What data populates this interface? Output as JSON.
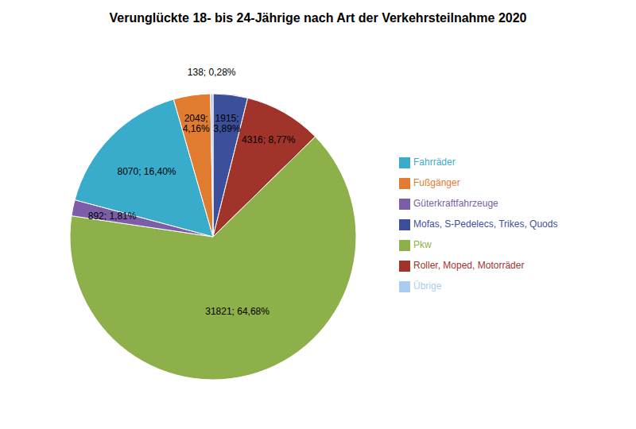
{
  "chart_data": {
    "type": "pie",
    "title": "Verunglückte 18- bis 24-Jährige nach Art der Verkehrsteilnahme 2020",
    "categories": [
      "Mofas, S-Pedelecs, Trikes, Quods",
      "Roller, Moped, Motorräder",
      "Pkw",
      "Güterkraftfahrzeuge",
      "Fahrräder",
      "Fußgänger",
      "Übrige"
    ],
    "values": [
      1915,
      4316,
      31821,
      892,
      8070,
      2049,
      138
    ],
    "value_labels": [
      "1915;\n3,89%",
      "4316; 8,77%",
      "31821; 64,68%",
      "892; 1,81%",
      "8070; 16,40%",
      "2049;\n4,16%",
      "138; 0,28%"
    ],
    "colors": [
      "#3B4F9B",
      "#A0332A",
      "#8DB04A",
      "#7B5EA7",
      "#3AACCB",
      "#E07B30",
      "#AACCEE"
    ],
    "legend": "right"
  }
}
